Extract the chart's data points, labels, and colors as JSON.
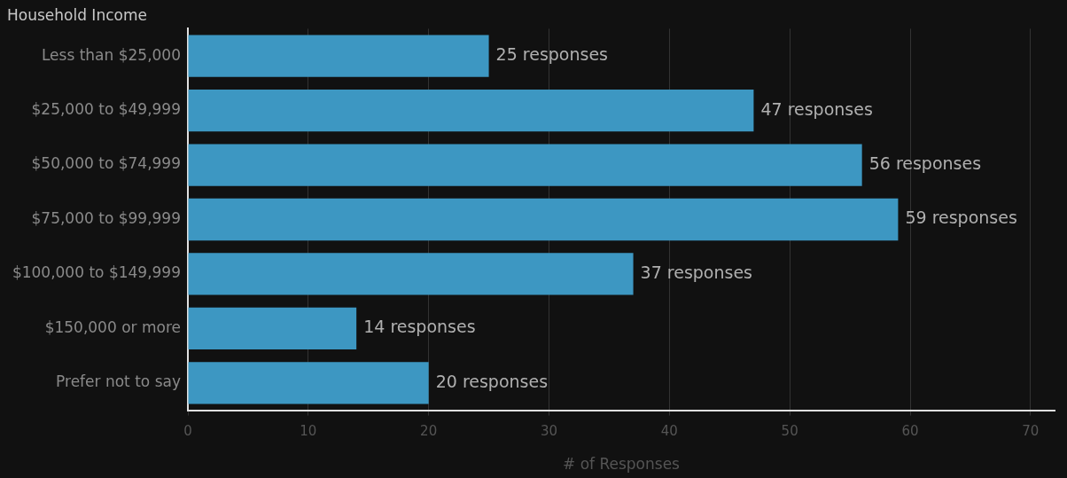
{
  "chart_data": {
    "type": "bar",
    "orientation": "horizontal",
    "title": "Household Income",
    "xlabel": "# of Responses",
    "categories": [
      "Less than $25,000",
      "$25,000 to $49,999",
      "$50,000 to $74,999",
      "$75,000 to $99,999",
      "$100,000 to $149,999",
      "$150,000 or more",
      "Prefer not to say"
    ],
    "values": [
      25,
      47,
      56,
      59,
      37,
      14,
      20
    ],
    "value_labels": [
      "25 responses",
      "47 responses",
      "56 responses",
      "59 responses",
      "37 responses",
      "14 responses",
      "20 responses"
    ],
    "color": "#3d97c2",
    "xlim": [
      0,
      72
    ],
    "xticks": [
      0,
      10,
      20,
      30,
      40,
      50,
      60,
      70
    ],
    "grid": "x",
    "legend": false
  }
}
